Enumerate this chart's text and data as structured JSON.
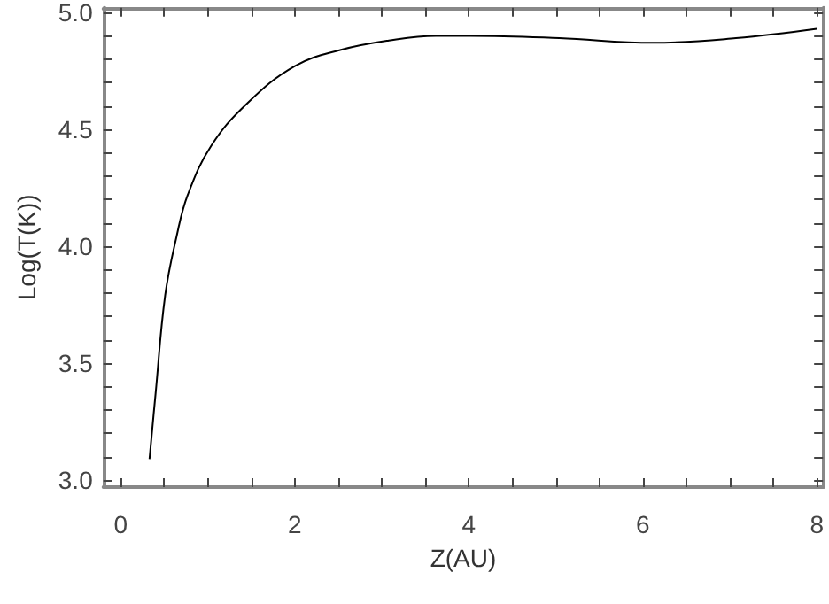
{
  "chart_data": {
    "type": "line",
    "xlabel": "Z(AU)",
    "ylabel": "Log(T(K))",
    "xlim": [
      -0.2,
      8.07
    ],
    "ylim": [
      2.97,
      5.02
    ],
    "grid": false,
    "marker": "none",
    "line_style": "solid",
    "xticks": [
      0,
      {
        "value": 0.5,
        "label": null
      },
      {
        "value": 1,
        "label": null
      },
      {
        "value": 1.5,
        "label": null
      },
      2,
      {
        "value": 2.5,
        "label": null
      },
      {
        "value": 3,
        "label": null
      },
      {
        "value": 3.5,
        "label": null
      },
      4,
      {
        "value": 4.5,
        "label": null
      },
      {
        "value": 5,
        "label": null
      },
      {
        "value": 5.5,
        "label": null
      },
      6,
      {
        "value": 6.5,
        "label": null
      },
      {
        "value": 7,
        "label": null
      },
      {
        "value": 7.5,
        "label": null
      },
      8
    ],
    "yticks": [
      {
        "value": 3,
        "label": "3.0"
      },
      {
        "value": 3.1,
        "label": null
      },
      {
        "value": 3.2,
        "label": null
      },
      {
        "value": 3.3,
        "label": null
      },
      {
        "value": 3.4,
        "label": null
      },
      3.5,
      {
        "value": 3.6,
        "label": null
      },
      {
        "value": 3.7,
        "label": null
      },
      {
        "value": 3.8,
        "label": null
      },
      {
        "value": 3.9,
        "label": null
      },
      {
        "value": 4,
        "label": "4.0"
      },
      {
        "value": 4.1,
        "label": null
      },
      {
        "value": 4.2,
        "label": null
      },
      {
        "value": 4.3,
        "label": null
      },
      {
        "value": 4.4,
        "label": null
      },
      4.5,
      {
        "value": 4.6,
        "label": null
      },
      {
        "value": 4.7,
        "label": null
      },
      {
        "value": 4.8,
        "label": null
      },
      {
        "value": 4.9,
        "label": null
      },
      {
        "value": 5,
        "label": "5.0"
      }
    ],
    "x": [
      0.33,
      0.4,
      0.51,
      0.64,
      0.77,
      1.04,
      1.45,
      2.0,
      2.53,
      3.08,
      3.62,
      4.02,
      5.04,
      6.12,
      7.07,
      8.0
    ],
    "series": [
      {
        "color": "#000000",
        "values": [
          3.09,
          3.37,
          3.79,
          4.04,
          4.22,
          4.43,
          4.61,
          4.77,
          4.84,
          4.88,
          4.9,
          4.9,
          4.89,
          4.87,
          4.89,
          4.93
        ]
      }
    ]
  }
}
